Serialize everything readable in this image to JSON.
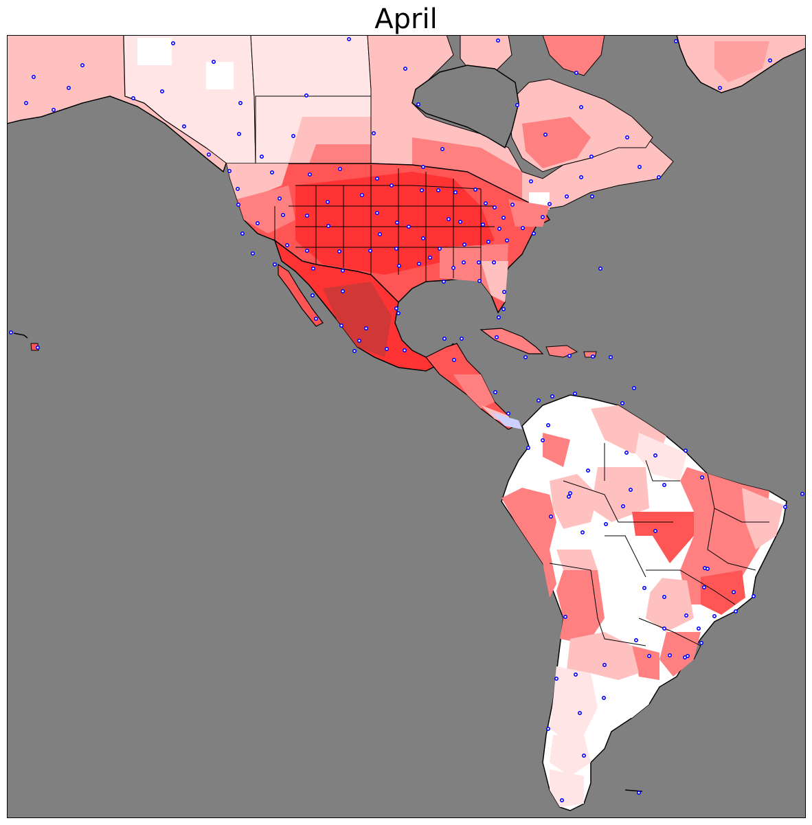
{
  "title": "April",
  "colors": {
    "ocean": "#808080",
    "frame": "#000000",
    "station_stroke": "#0000ff",
    "station_fill": "#ffffff",
    "coast": "#000000",
    "scale": [
      "#ffffff",
      "#ffe5e5",
      "#ffc0c0",
      "#ff8080",
      "#ff5555",
      "#ff3333",
      "#d03838",
      "#ccd0ff"
    ]
  },
  "legend": null
}
